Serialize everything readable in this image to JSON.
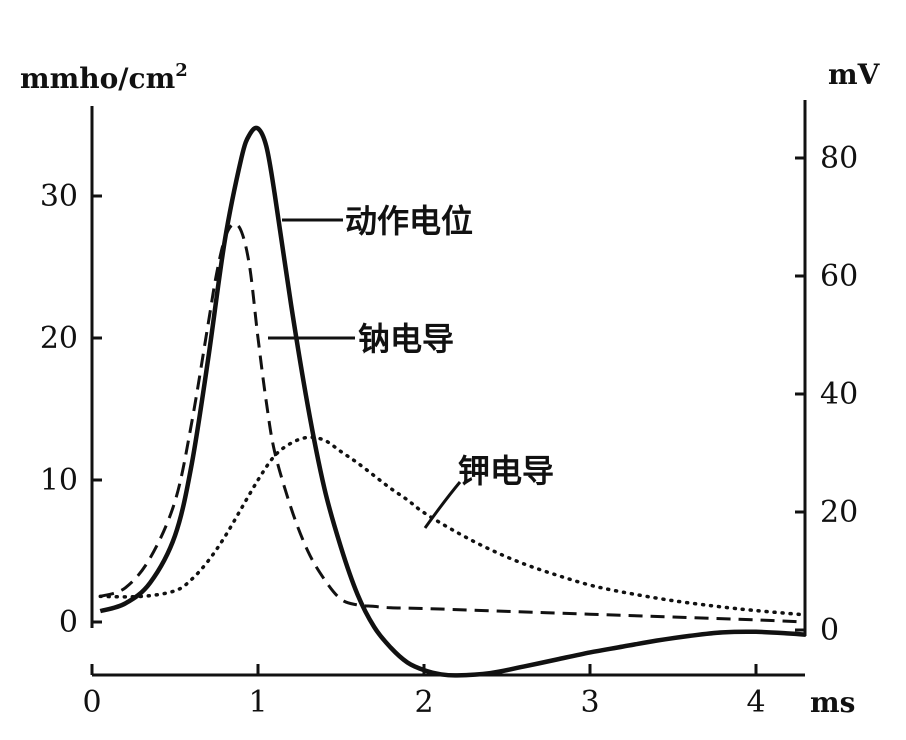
{
  "chart_data": {
    "type": "line",
    "title": "",
    "x": {
      "label": "ms",
      "lim": [
        0,
        4.3
      ],
      "ticks": [
        0,
        1,
        2,
        3,
        4
      ]
    },
    "y_left": {
      "label": "mmho/cm",
      "label_superscript": "2",
      "lim": [
        0,
        35
      ],
      "ticks": [
        0,
        10,
        20,
        30
      ]
    },
    "y_right": {
      "label": "mV",
      "lim": [
        0,
        87
      ],
      "ticks": [
        0,
        20,
        40,
        60,
        80
      ]
    },
    "grid": false,
    "series": [
      {
        "name": "动作电位",
        "axis": "right",
        "style": "solid",
        "x": [
          0.05,
          0.2,
          0.35,
          0.5,
          0.6,
          0.7,
          0.8,
          0.9,
          0.95,
          1.0,
          1.05,
          1.1,
          1.2,
          1.3,
          1.4,
          1.5,
          1.6,
          1.7,
          1.8,
          1.9,
          2.0,
          2.1,
          2.2,
          2.4,
          2.6,
          2.8,
          3.0,
          3.2,
          3.4,
          3.6,
          3.8,
          4.0,
          4.2,
          4.3
        ],
        "y": [
          3.2,
          4.5,
          8,
          16,
          28,
          46,
          66,
          80,
          84,
          85,
          82,
          74,
          55,
          38,
          24,
          14,
          6,
          0.5,
          -3,
          -5.5,
          -6.8,
          -7.5,
          -7.7,
          -7.3,
          -6.2,
          -5,
          -3.8,
          -2.8,
          -1.8,
          -1,
          -0.4,
          -0.3,
          -0.6,
          -0.8
        ]
      },
      {
        "name": "钠电导",
        "axis": "left",
        "style": "dashed",
        "x": [
          0.05,
          0.2,
          0.35,
          0.5,
          0.6,
          0.7,
          0.75,
          0.8,
          0.85,
          0.9,
          0.95,
          1.0,
          1.05,
          1.1,
          1.2,
          1.3,
          1.4,
          1.5,
          1.6,
          1.7,
          1.8,
          2.0,
          2.5,
          3.0,
          3.5,
          4.0,
          4.3
        ],
        "y": [
          1.8,
          2.4,
          4.5,
          8.5,
          14,
          21,
          24.5,
          27,
          28,
          27.5,
          25,
          20,
          15.5,
          12,
          8,
          5,
          3,
          1.6,
          1.2,
          1.1,
          1.0,
          0.95,
          0.75,
          0.55,
          0.35,
          0.15,
          0.0
        ]
      },
      {
        "name": "钾电导",
        "axis": "left",
        "style": "dotted",
        "x": [
          0.05,
          0.3,
          0.5,
          0.6,
          0.7,
          0.8,
          0.9,
          1.0,
          1.1,
          1.2,
          1.3,
          1.4,
          1.5,
          1.6,
          1.7,
          1.8,
          1.9,
          2.0,
          2.2,
          2.4,
          2.6,
          2.8,
          3.0,
          3.2,
          3.5,
          3.8,
          4.0,
          4.3
        ],
        "y": [
          1.8,
          1.8,
          2.2,
          3,
          4.3,
          6,
          8,
          10,
          11.7,
          12.6,
          13,
          12.8,
          12,
          11.2,
          10.3,
          9.4,
          8.6,
          7.7,
          6.3,
          5.1,
          4.1,
          3.3,
          2.6,
          2.1,
          1.5,
          1.05,
          0.8,
          0.5
        ]
      }
    ]
  }
}
